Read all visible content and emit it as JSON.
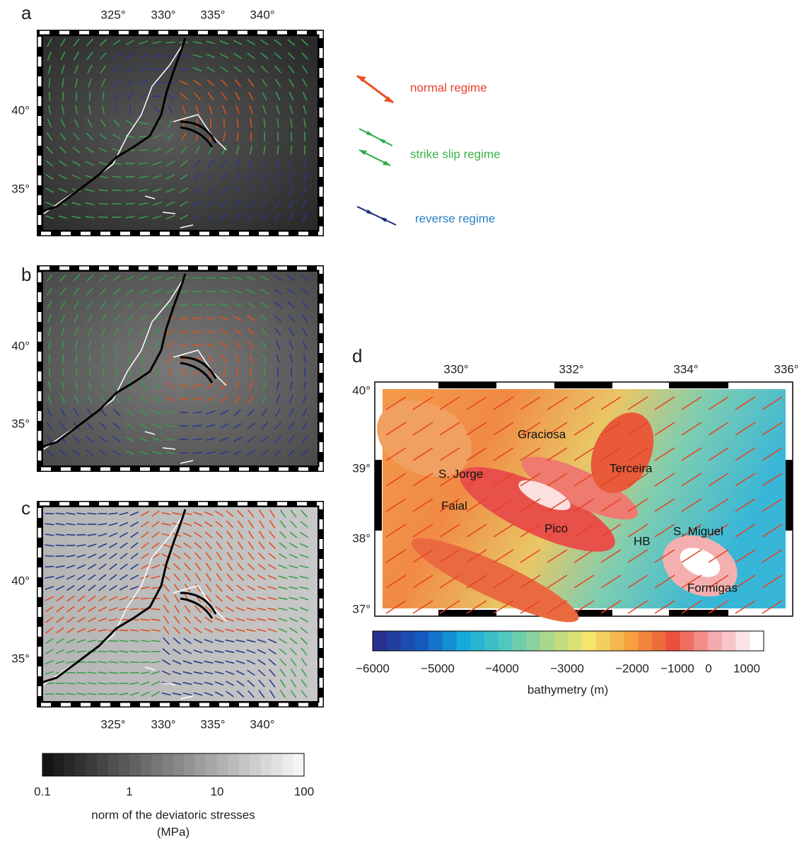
{
  "panels": [
    {
      "label": "a",
      "top_ticks": [
        "325°",
        "330°",
        "335°",
        "340°"
      ],
      "left_ticks": [
        "40°",
        "35°"
      ]
    },
    {
      "label": "b",
      "left_ticks": [
        "40°",
        "35°"
      ]
    },
    {
      "label": "c",
      "left_ticks": [
        "40°",
        "35°"
      ],
      "bottom_ticks": [
        "325°",
        "330°",
        "335°",
        "340°"
      ]
    },
    {
      "label": "d",
      "top_ticks": [
        "330°",
        "332°",
        "334°",
        "336°"
      ],
      "left_ticks": [
        "40°",
        "39°",
        "38°",
        "37°"
      ],
      "places": [
        "Graciosa",
        "S. Jorge",
        "Terceira",
        "Faial",
        "Pico",
        "HB",
        "S. Miguel",
        "Formigas"
      ]
    }
  ],
  "legend": [
    "normal regime",
    "strike slip regime",
    "reverse regime"
  ],
  "stress_colorbar": {
    "ticks": [
      "0.1",
      "1",
      "10",
      "100"
    ],
    "title": [
      "norm of the deviatoric stresses",
      "(MPa)"
    ]
  },
  "bathymetry_colorbar": {
    "ticks": [
      "−6000",
      "−5000",
      "−4000",
      "−3000",
      "−2000",
      "−1000",
      "0",
      "1000"
    ],
    "title": "bathymetry (m)"
  }
}
